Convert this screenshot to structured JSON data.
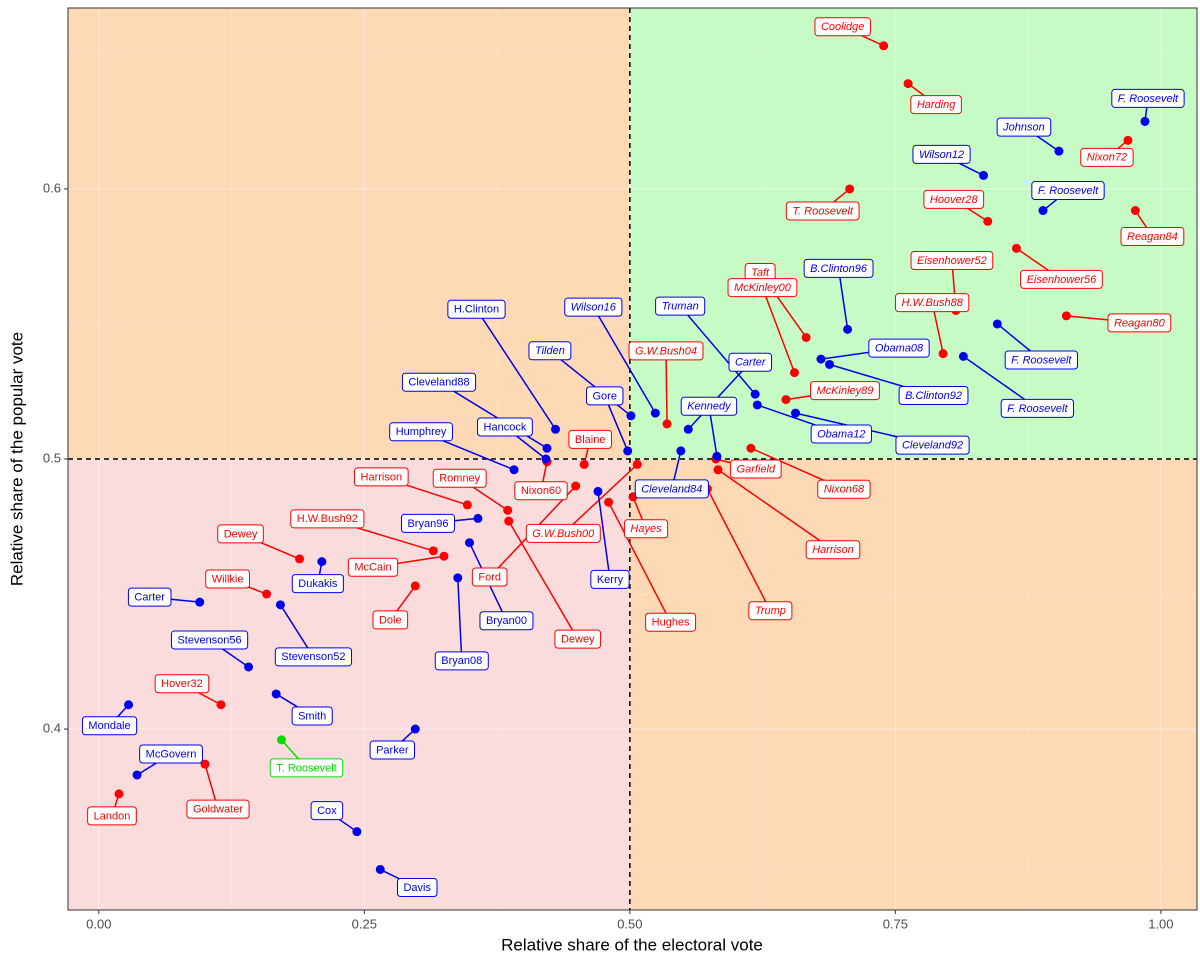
{
  "chart_data": {
    "type": "scatter",
    "x_label": "Relative share of the electoral vote",
    "y_label": "Relative share of the popular vote",
    "xlim": [
      -0.029,
      1.034
    ],
    "ylim": [
      0.333,
      0.667
    ],
    "xticks": [
      {
        "value": 0,
        "label": "0.00"
      },
      {
        "value": 0.25,
        "label": "0.25"
      },
      {
        "value": 0.5,
        "label": "0.50"
      },
      {
        "value": 0.75,
        "label": "0.75"
      },
      {
        "value": 1,
        "label": "1.00"
      }
    ],
    "yticks": [
      0.4,
      0.5,
      0.6
    ],
    "xminor": [
      0.125,
      0.375,
      0.625,
      0.875
    ],
    "yminor": [
      0.35,
      0.45,
      0.55,
      0.65
    ],
    "grid": true,
    "xline": 0.5,
    "yline": 0.5,
    "quadrant_colors": {
      "top_left": "#fdd9b5",
      "top_right": "#c6fbc6",
      "bottom_left": "#fadcdc",
      "bottom_right": "#fdd9b5"
    },
    "series": [
      {
        "color": "#ff0000",
        "labels": [
          "Coolidge",
          "Harding",
          "Nixon72",
          "T. Roosevelt",
          "Hoover28",
          "Reagan84",
          "Eisenhower56",
          "Eisenhower52",
          "Reagan80",
          "Taft",
          "H.W.Bush88",
          "McKinley00",
          "McKinley89",
          "G.W.Bush04",
          "Nixon68",
          "Garfield",
          "Harrison",
          "Trump",
          "G.W.Bush00",
          "Hayes",
          "Hughes",
          "Blaine",
          "Ford",
          "Nixon60",
          "Romney",
          "Dewey",
          "Harrison",
          "H.W.Bush92",
          "McCain",
          "Dole",
          "Dewey",
          "Willkie",
          "Hover32",
          "Goldwater",
          "Landon"
        ],
        "x": [
          0.739,
          0.762,
          0.969,
          0.707,
          0.837,
          0.976,
          0.864,
          0.807,
          0.911,
          0.666,
          0.795,
          0.655,
          0.647,
          0.535,
          0.614,
          0.581,
          0.583,
          0.573,
          0.507,
          0.503,
          0.48,
          0.457,
          0.449,
          0.422,
          0.385,
          0.386,
          0.347,
          0.315,
          0.325,
          0.298,
          0.189,
          0.158,
          0.115,
          0.1,
          0.019
        ],
        "values": [
          0.653,
          0.639,
          0.618,
          0.6,
          0.588,
          0.592,
          0.578,
          0.555,
          0.553,
          0.545,
          0.539,
          0.532,
          0.522,
          0.513,
          0.504,
          0.5,
          0.496,
          0.489,
          0.498,
          0.486,
          0.484,
          0.498,
          0.49,
          0.499,
          0.481,
          0.477,
          0.483,
          0.466,
          0.464,
          0.453,
          0.463,
          0.45,
          0.409,
          0.387,
          0.376
        ]
      },
      {
        "color": "#0000ee",
        "labels": [
          "F. Roosevelt",
          "Johnson",
          "Wilson12",
          "F. Roosevelt",
          "B.Clinton96",
          "F. Roosevelt",
          "F. Roosevelt",
          "Obama08",
          "B.Clinton92",
          "Truman",
          "Obama12",
          "Cleveland92",
          "Carter",
          "Wilson16",
          "Kennedy",
          "Cleveland84",
          "Tilden",
          "Gore",
          "H.Clinton",
          "Cleveland88",
          "Hancock",
          "Humphrey",
          "Kerry",
          "Bryan96",
          "Bryan00",
          "Bryan08",
          "Dukakis",
          "Carter",
          "Stevenson52",
          "Stevenson56",
          "Smith",
          "Mondale",
          "McGovern",
          "Parker",
          "Cox",
          "Davis"
        ],
        "x": [
          0.985,
          0.904,
          0.833,
          0.889,
          0.705,
          0.846,
          0.814,
          0.68,
          0.688,
          0.618,
          0.62,
          0.656,
          0.555,
          0.524,
          0.582,
          0.548,
          0.501,
          0.498,
          0.43,
          0.422,
          0.421,
          0.391,
          0.47,
          0.357,
          0.349,
          0.338,
          0.21,
          0.095,
          0.171,
          0.141,
          0.167,
          0.028,
          0.036,
          0.298,
          0.243,
          0.265
        ],
        "values": [
          0.625,
          0.614,
          0.605,
          0.592,
          0.548,
          0.55,
          0.538,
          0.537,
          0.535,
          0.524,
          0.52,
          0.517,
          0.511,
          0.517,
          0.501,
          0.503,
          0.516,
          0.503,
          0.511,
          0.504,
          0.5,
          0.496,
          0.488,
          0.478,
          0.469,
          0.456,
          0.462,
          0.447,
          0.446,
          0.423,
          0.413,
          0.409,
          0.383,
          0.4,
          0.362,
          0.348
        ]
      },
      {
        "color": "#00dd00",
        "labels": [
          "T. Roosevelt"
        ],
        "x": [
          0.172
        ],
        "values": [
          0.396
        ]
      }
    ]
  }
}
